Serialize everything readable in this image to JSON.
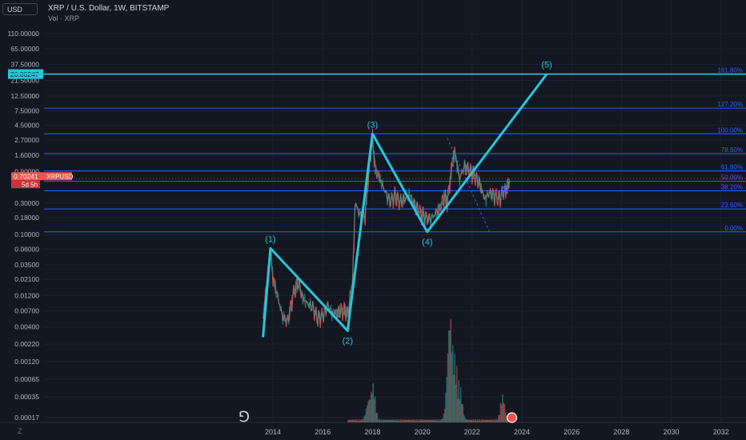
{
  "header": {
    "title": "XRP / U.S. Dollar, 1W, BITSTAMP",
    "volume_label": "Vol · XRP",
    "currency": "USD",
    "z_button": "Z"
  },
  "colors": {
    "bg": "#131722",
    "grid": "#1e222d",
    "fib": "#2962ff",
    "wave": "#26c6da",
    "up": "#26a69a",
    "down": "#ef5350",
    "text": "#b2b5be"
  },
  "chart_data": {
    "type": "line",
    "title": "XRP / U.S. Dollar, 1W, BITSTAMP",
    "symbol": "XRPUSD",
    "price_scale": "log",
    "y_ticks": [
      "110.00000",
      "65.00000",
      "37.50000",
      "21.50000",
      "12.50000",
      "7.50000",
      "4.50000",
      "2.70000",
      "1.60000",
      "0.90000",
      "0.30000",
      "0.18000",
      "0.10000",
      "0.06000",
      "0.03500",
      "0.02100",
      "0.01200",
      "0.00700",
      "0.00400",
      "0.00220",
      "0.00120",
      "0.00065",
      "0.00035",
      "0.00017"
    ],
    "x_ticks": [
      "2014",
      "2016",
      "2018",
      "2020",
      "2022",
      "2024",
      "2026",
      "2028",
      "2030",
      "2032"
    ],
    "last_price": "0.70241",
    "last_price_countdown": "5d 5h",
    "target_price": "26.86247",
    "fib_levels": [
      {
        "label": "161.80%",
        "price": 26.86
      },
      {
        "label": "127.20%",
        "price": 8.2
      },
      {
        "label": "100.00%",
        "price": 3.35
      },
      {
        "label": "78.60%",
        "price": 1.68
      },
      {
        "label": "61.80%",
        "price": 0.92
      },
      {
        "label": "50.00%",
        "price": 0.64
      },
      {
        "label": "38.20%",
        "price": 0.46
      },
      {
        "label": "23.60%",
        "price": 0.245
      },
      {
        "label": "0.00%",
        "price": 0.11
      }
    ],
    "wave_points": [
      {
        "label": "",
        "t": 2013.6,
        "price": 0.0028
      },
      {
        "label": "(1)",
        "t": 2013.9,
        "price": 0.062
      },
      {
        "label": "(2)",
        "t": 2017.0,
        "price": 0.0035
      },
      {
        "label": "(3)",
        "t": 2018.0,
        "price": 3.35
      },
      {
        "label": "(4)",
        "t": 2020.2,
        "price": 0.11
      },
      {
        "label": "(5)",
        "t": 2025.0,
        "price": 26.86
      }
    ],
    "price_series": [
      [
        2013.6,
        0.005
      ],
      [
        2013.9,
        0.06
      ],
      [
        2014.0,
        0.022
      ],
      [
        2014.2,
        0.011
      ],
      [
        2014.4,
        0.0055
      ],
      [
        2014.6,
        0.005
      ],
      [
        2014.8,
        0.012
      ],
      [
        2015.0,
        0.02
      ],
      [
        2015.2,
        0.011
      ],
      [
        2015.4,
        0.009
      ],
      [
        2015.6,
        0.008
      ],
      [
        2015.8,
        0.0055
      ],
      [
        2016.0,
        0.006
      ],
      [
        2016.2,
        0.0085
      ],
      [
        2016.4,
        0.0065
      ],
      [
        2016.6,
        0.0065
      ],
      [
        2016.8,
        0.0075
      ],
      [
        2017.0,
        0.0065
      ],
      [
        2017.2,
        0.02
      ],
      [
        2017.3,
        0.3
      ],
      [
        2017.5,
        0.2
      ],
      [
        2017.7,
        0.19
      ],
      [
        2017.9,
        1.5
      ],
      [
        2018.0,
        3.0
      ],
      [
        2018.1,
        1.0
      ],
      [
        2018.3,
        0.7
      ],
      [
        2018.5,
        0.45
      ],
      [
        2018.7,
        0.32
      ],
      [
        2018.9,
        0.4
      ],
      [
        2019.1,
        0.32
      ],
      [
        2019.3,
        0.35
      ],
      [
        2019.5,
        0.4
      ],
      [
        2019.7,
        0.28
      ],
      [
        2019.9,
        0.22
      ],
      [
        2020.1,
        0.19
      ],
      [
        2020.3,
        0.17
      ],
      [
        2020.5,
        0.2
      ],
      [
        2020.7,
        0.25
      ],
      [
        2020.9,
        0.4
      ],
      [
        2021.0,
        0.3
      ],
      [
        2021.2,
        1.2
      ],
      [
        2021.3,
        1.85
      ],
      [
        2021.5,
        0.7
      ],
      [
        2021.7,
        1.1
      ],
      [
        2021.9,
        0.95
      ],
      [
        2022.1,
        0.8
      ],
      [
        2022.3,
        0.6
      ],
      [
        2022.5,
        0.35
      ],
      [
        2022.7,
        0.43
      ],
      [
        2022.9,
        0.39
      ],
      [
        2023.1,
        0.36
      ],
      [
        2023.3,
        0.47
      ],
      [
        2023.4,
        0.5
      ],
      [
        2023.5,
        0.7
      ]
    ],
    "volume_peaks": [
      [
        2017.8,
        0.18
      ],
      [
        2018.0,
        0.35
      ],
      [
        2021.0,
        0.3
      ],
      [
        2021.1,
        0.9
      ],
      [
        2021.3,
        0.55
      ],
      [
        2021.5,
        0.3
      ],
      [
        2023.2,
        0.25
      ]
    ]
  }
}
